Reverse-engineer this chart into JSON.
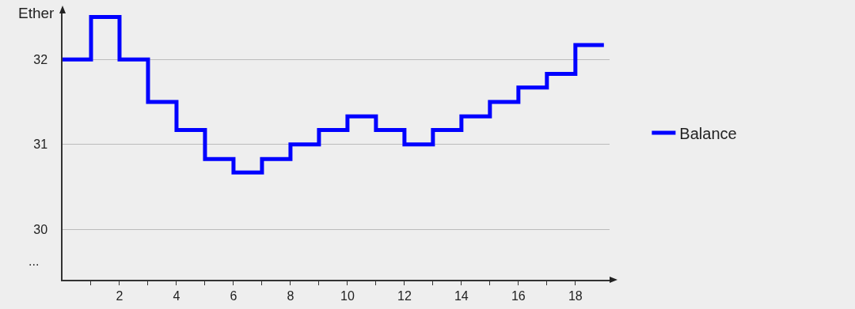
{
  "chart_data": {
    "type": "step",
    "ylabel": "Ether",
    "x": [
      0,
      1,
      2,
      3,
      4,
      5,
      6,
      7,
      8,
      9,
      10,
      11,
      12,
      13,
      14,
      15,
      16,
      17,
      18,
      19
    ],
    "series": [
      {
        "name": "Balance",
        "color": "#0000ff",
        "values": [
          32,
          32.5,
          32,
          31.5,
          31.17,
          30.83,
          30.67,
          30.83,
          31,
          31.17,
          31.33,
          31.17,
          31,
          31.17,
          31.33,
          31.5,
          31.67,
          31.83,
          32.17,
          32.17
        ]
      }
    ],
    "xlim": [
      0,
      19.2
    ],
    "xticks": [
      {
        "value": 1,
        "label": null
      },
      2,
      {
        "value": 3,
        "label": null
      },
      4,
      {
        "value": 5,
        "label": null
      },
      6,
      {
        "value": 7,
        "label": null
      },
      8,
      {
        "value": 9,
        "label": null
      },
      10,
      {
        "value": 11,
        "label": null
      },
      12,
      {
        "value": 13,
        "label": null
      },
      14,
      {
        "value": 15,
        "label": null
      },
      16,
      {
        "value": 17,
        "label": null
      },
      18
    ],
    "ylim": [
      29.41,
      32.55
    ],
    "yticks": [
      30,
      31,
      32
    ],
    "annotations": [
      "..."
    ],
    "grid": "y",
    "legend": "right",
    "marker": "none",
    "line_style": "solid"
  }
}
